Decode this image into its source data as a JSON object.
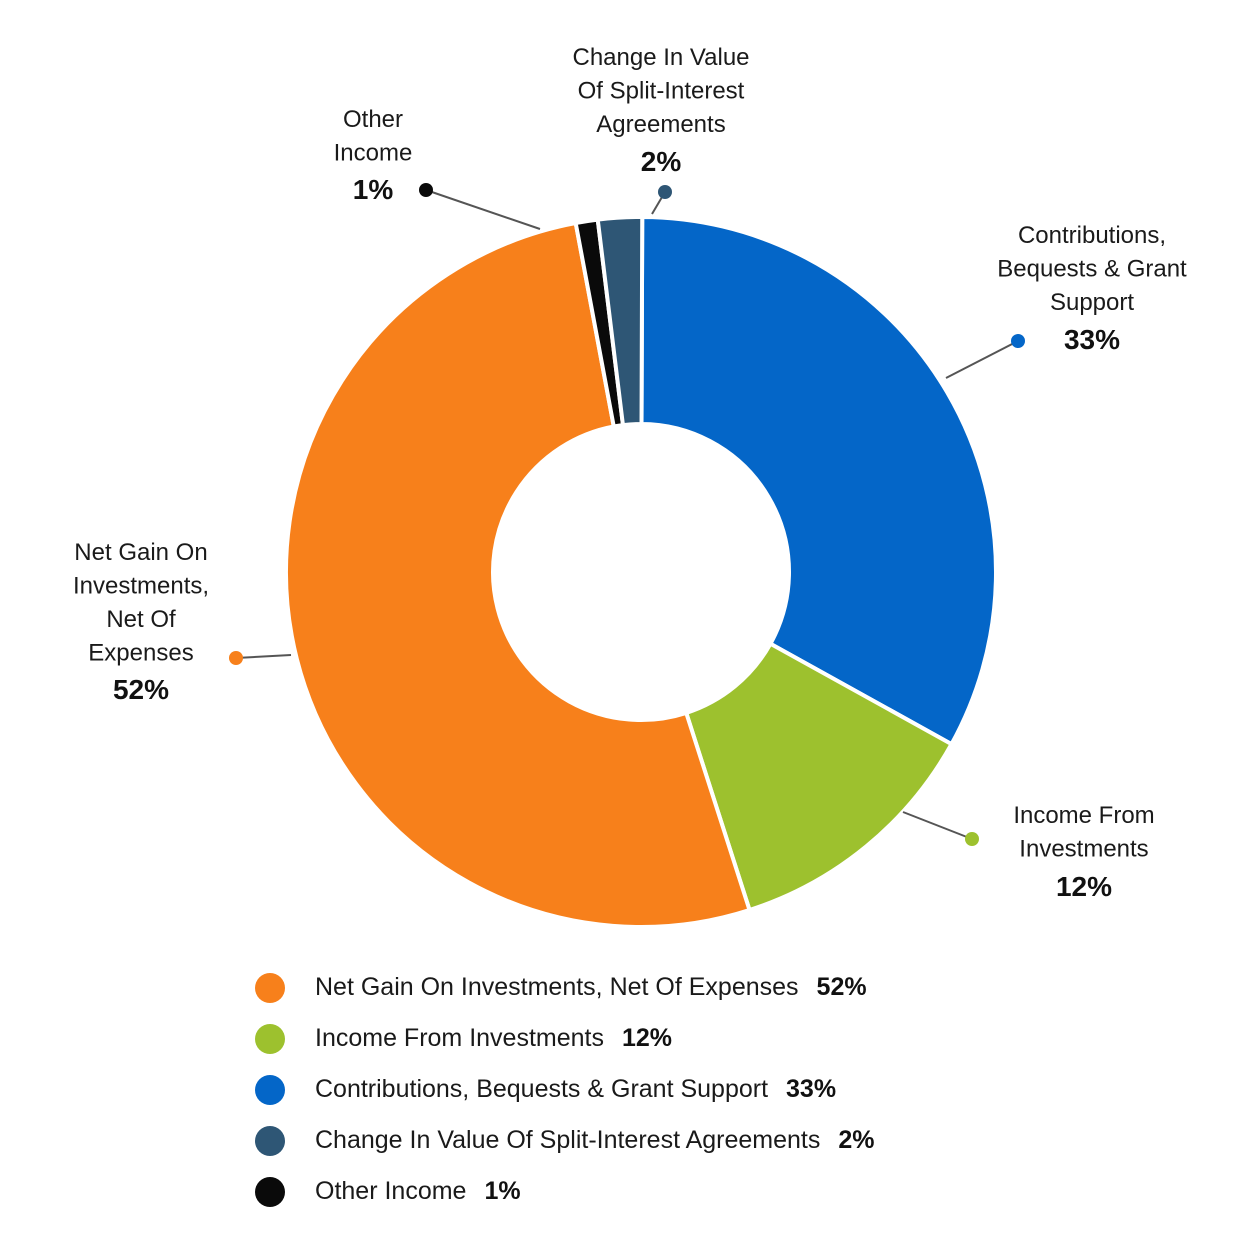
{
  "chart_data": {
    "type": "pie",
    "donut": true,
    "slices": [
      {
        "name": "Contributions, Bequests & Grant Support",
        "value": 33,
        "label_pct": "33%",
        "color": "#0466c8",
        "callout_lines": [
          "Contributions,",
          "Bequests & Grant",
          "Support"
        ]
      },
      {
        "name": "Income From Investments",
        "value": 12,
        "label_pct": "12%",
        "color": "#9dc12e",
        "callout_lines": [
          "Income From",
          "Investments"
        ]
      },
      {
        "name": "Net Gain On Investments, Net Of Expenses",
        "value": 52,
        "label_pct": "52%",
        "color": "#f7801b",
        "callout_lines": [
          "Net Gain On",
          "Investments,",
          "Net Of",
          "Expenses"
        ]
      },
      {
        "name": "Other Income",
        "value": 1,
        "label_pct": "1%",
        "color": "#0a0a0a",
        "callout_lines": [
          "Other",
          "Income"
        ]
      },
      {
        "name": "Change In Value Of Split-Interest Agreements",
        "value": 2,
        "label_pct": "2%",
        "color": "#2e5675",
        "callout_lines": [
          "Change In Value",
          "Of Split-Interest",
          "Agreements"
        ]
      }
    ],
    "legend": {
      "placement": "bottom",
      "order": [
        2,
        1,
        0,
        4,
        3
      ]
    }
  }
}
